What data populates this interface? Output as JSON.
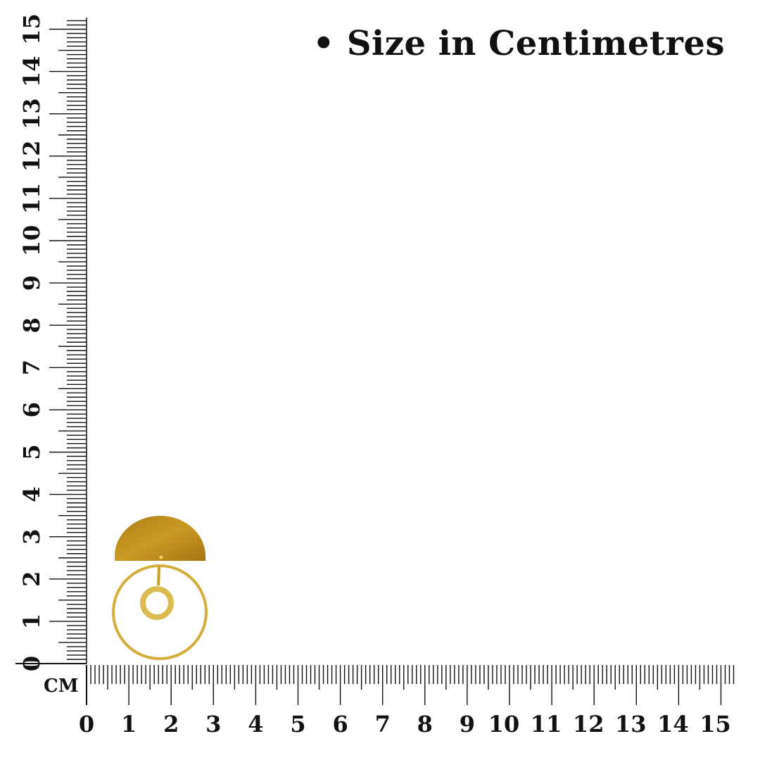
{
  "caption": "• Size in Centimetres",
  "unit_label": "CM",
  "ruler": {
    "min": 0,
    "max": 15,
    "horizontal_labels": [
      "0",
      "1",
      "2",
      "3",
      "4",
      "5",
      "6",
      "7",
      "8",
      "9",
      "10",
      "11",
      "12",
      "13",
      "14",
      "15"
    ],
    "vertical_labels": [
      "0",
      "1",
      "2",
      "3",
      "4",
      "5",
      "6",
      "7",
      "8",
      "9",
      "10",
      "11",
      "12",
      "13",
      "14",
      "15"
    ]
  },
  "colors": {
    "ruler": "#111111",
    "gold": "#c9a227",
    "gold_plate": "#b8860b"
  },
  "product": {
    "type": "earring",
    "approx_width_cm": 2.2,
    "approx_height_cm": 3.5
  }
}
